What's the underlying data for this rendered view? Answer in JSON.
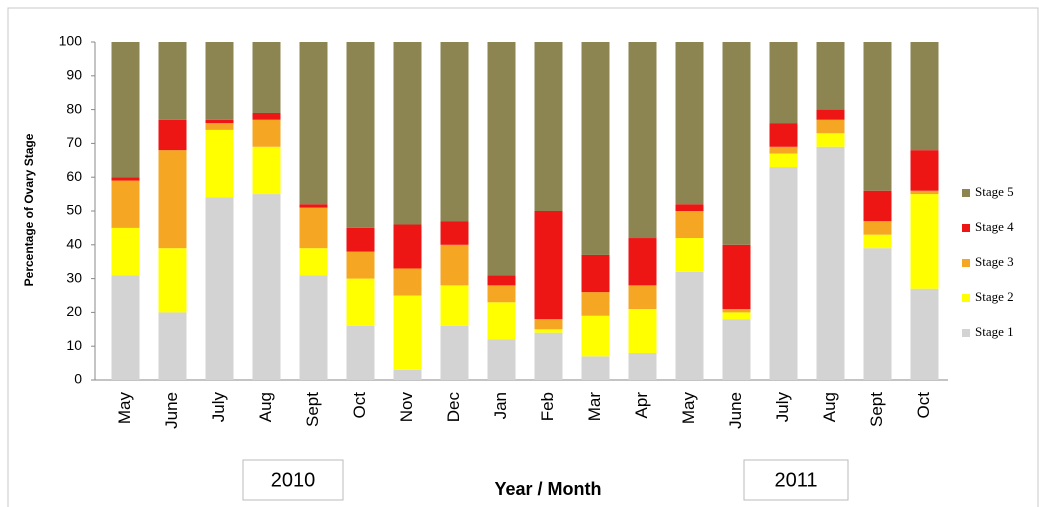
{
  "chart_data": {
    "type": "stacked_bar",
    "y_label": "Percentage of Ovary Stage",
    "x_label": "Year / Month",
    "year_labels": [
      "2010",
      "2011"
    ],
    "categories": [
      "May",
      "June",
      "July",
      "Aug",
      "Sept",
      "Oct",
      "Nov",
      "Dec",
      "Jan",
      "Feb",
      "Mar",
      "Apr",
      "May",
      "June",
      "July",
      "Aug",
      "Sept",
      "Oct"
    ],
    "series": [
      {
        "name": "Stage 1",
        "color": "#d3d3d3",
        "values": [
          31,
          20,
          54,
          55,
          31,
          16,
          3,
          16,
          12,
          14,
          7,
          8,
          32,
          18,
          63,
          69,
          39,
          27
        ]
      },
      {
        "name": "Stage 2",
        "color": "#ffff00",
        "values": [
          14,
          19,
          20,
          14,
          8,
          14,
          22,
          12,
          11,
          1,
          12,
          13,
          10,
          2,
          4,
          4,
          4,
          28
        ]
      },
      {
        "name": "Stage 3",
        "color": "#f5a623",
        "values": [
          14,
          29,
          2,
          8,
          12,
          8,
          8,
          12,
          5,
          3,
          7,
          7,
          8,
          1,
          2,
          4,
          4,
          1
        ]
      },
      {
        "name": "Stage 4",
        "color": "#ee1515",
        "values": [
          1,
          9,
          1,
          2,
          1,
          7,
          13,
          7,
          3,
          32,
          11,
          14,
          2,
          19,
          7,
          3,
          9,
          12
        ]
      },
      {
        "name": "Stage 5",
        "color": "#8c8552",
        "values": [
          40,
          23,
          23,
          21,
          48,
          55,
          54,
          53,
          69,
          50,
          63,
          58,
          48,
          60,
          24,
          20,
          44,
          32
        ]
      }
    ],
    "ylim": [
      0,
      100
    ],
    "yticks": [
      0,
      10,
      20,
      30,
      40,
      50,
      60,
      70,
      80,
      90,
      100
    ],
    "grid": false
  }
}
